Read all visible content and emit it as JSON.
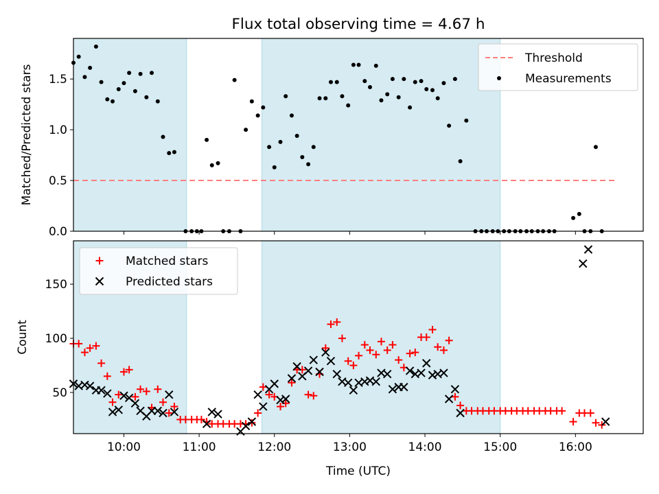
{
  "figure": {
    "title": "Flux total observing time = 4.67 h"
  },
  "colors": {
    "band": "#add8e6",
    "threshold": "#ff7f7f",
    "measurement": "#000000",
    "matched": "#ff0000",
    "predicted": "#000000"
  },
  "chart_data": [
    {
      "id": "ratio",
      "type": "scatter",
      "ylabel": "Matched/Predicted stars",
      "xlabel": "",
      "xlim": [
        9.33,
        16.9
      ],
      "ylim": [
        0,
        1.9
      ],
      "yticks": [
        0.0,
        0.5,
        1.0,
        1.5
      ],
      "ytick_labels": [
        "0.0",
        "0.5",
        "1.0",
        "1.5"
      ],
      "shaded_intervals": [
        [
          9.33,
          10.833
        ],
        [
          11.833,
          15.0
        ]
      ],
      "threshold": {
        "value": 0.5,
        "x_range": [
          9.33,
          16.55
        ]
      },
      "legend": {
        "position": "upper right",
        "entries": [
          "Threshold",
          "Measurements"
        ]
      },
      "series": [
        {
          "name": "Measurements",
          "marker": "dot",
          "points": [
            [
              9.33,
              1.66
            ],
            [
              9.4,
              1.72
            ],
            [
              9.48,
              1.52
            ],
            [
              9.55,
              1.61
            ],
            [
              9.63,
              1.82
            ],
            [
              9.7,
              1.47
            ],
            [
              9.78,
              1.3
            ],
            [
              9.85,
              1.28
            ],
            [
              9.93,
              1.4
            ],
            [
              10.0,
              1.46
            ],
            [
              10.07,
              1.56
            ],
            [
              10.15,
              1.38
            ],
            [
              10.22,
              1.55
            ],
            [
              10.3,
              1.32
            ],
            [
              10.37,
              1.56
            ],
            [
              10.45,
              1.28
            ],
            [
              10.52,
              0.93
            ],
            [
              10.6,
              0.77
            ],
            [
              10.67,
              0.78
            ],
            [
              10.82,
              0.0
            ],
            [
              10.9,
              0.0
            ],
            [
              10.97,
              0.0
            ],
            [
              11.03,
              0.0
            ],
            [
              11.1,
              0.9
            ],
            [
              11.17,
              0.65
            ],
            [
              11.25,
              0.67
            ],
            [
              11.32,
              0.0
            ],
            [
              11.4,
              0.0
            ],
            [
              11.47,
              1.49
            ],
            [
              11.55,
              0.0
            ],
            [
              11.62,
              1.0
            ],
            [
              11.7,
              1.28
            ],
            [
              11.78,
              1.14
            ],
            [
              11.85,
              1.22
            ],
            [
              11.93,
              0.83
            ],
            [
              12.0,
              0.63
            ],
            [
              12.08,
              0.88
            ],
            [
              12.15,
              1.33
            ],
            [
              12.23,
              1.14
            ],
            [
              12.3,
              0.94
            ],
            [
              12.37,
              0.73
            ],
            [
              12.45,
              0.66
            ],
            [
              12.52,
              0.83
            ],
            [
              12.6,
              1.31
            ],
            [
              12.68,
              1.31
            ],
            [
              12.75,
              1.47
            ],
            [
              12.83,
              1.47
            ],
            [
              12.9,
              1.33
            ],
            [
              12.98,
              1.24
            ],
            [
              13.05,
              1.64
            ],
            [
              13.12,
              1.64
            ],
            [
              13.2,
              1.48
            ],
            [
              13.27,
              1.42
            ],
            [
              13.35,
              1.63
            ],
            [
              13.42,
              1.29
            ],
            [
              13.5,
              1.35
            ],
            [
              13.57,
              1.5
            ],
            [
              13.65,
              1.32
            ],
            [
              13.72,
              1.5
            ],
            [
              13.8,
              1.22
            ],
            [
              13.87,
              1.47
            ],
            [
              13.95,
              1.48
            ],
            [
              14.02,
              1.4
            ],
            [
              14.1,
              1.39
            ],
            [
              14.17,
              1.31
            ],
            [
              14.25,
              1.46
            ],
            [
              14.32,
              1.04
            ],
            [
              14.4,
              1.5
            ],
            [
              14.47,
              0.69
            ],
            [
              14.55,
              1.09
            ],
            [
              14.67,
              0.0
            ],
            [
              14.75,
              0.0
            ],
            [
              14.82,
              0.0
            ],
            [
              14.9,
              0.0
            ],
            [
              14.97,
              0.0
            ],
            [
              15.05,
              0.0
            ],
            [
              15.12,
              0.0
            ],
            [
              15.2,
              0.0
            ],
            [
              15.27,
              0.0
            ],
            [
              15.35,
              0.0
            ],
            [
              15.42,
              0.0
            ],
            [
              15.5,
              0.0
            ],
            [
              15.57,
              0.0
            ],
            [
              15.65,
              0.0
            ],
            [
              15.72,
              0.0
            ],
            [
              15.97,
              0.13
            ],
            [
              16.05,
              0.17
            ],
            [
              16.12,
              0.0
            ],
            [
              16.2,
              0.0
            ],
            [
              16.27,
              0.83
            ],
            [
              16.35,
              0.0
            ]
          ]
        }
      ]
    },
    {
      "id": "counts",
      "type": "scatter",
      "ylabel": "Count",
      "xlabel": "Time (UTC)",
      "xlim": [
        9.33,
        16.9
      ],
      "ylim": [
        12,
        190
      ],
      "yticks": [
        50,
        100,
        150
      ],
      "ytick_labels": [
        "50",
        "100",
        "150"
      ],
      "xticks": [
        10,
        11,
        12,
        13,
        14,
        15,
        16
      ],
      "xtick_labels": [
        "10:00",
        "11:00",
        "12:00",
        "13:00",
        "14:00",
        "15:00",
        "16:00"
      ],
      "shaded_intervals": [
        [
          9.33,
          10.833
        ],
        [
          11.833,
          15.0
        ]
      ],
      "legend": {
        "position": "upper left",
        "entries": [
          "Matched stars",
          "Predicted stars"
        ]
      },
      "series": [
        {
          "name": "Matched stars",
          "marker": "plus",
          "points": [
            [
              9.33,
              95
            ],
            [
              9.4,
              95
            ],
            [
              9.48,
              87
            ],
            [
              9.55,
              91
            ],
            [
              9.63,
              93
            ],
            [
              9.7,
              77
            ],
            [
              9.78,
              65
            ],
            [
              9.85,
              41
            ],
            [
              9.93,
              48
            ],
            [
              10.0,
              69
            ],
            [
              10.07,
              71
            ],
            [
              10.15,
              46
            ],
            [
              10.22,
              53
            ],
            [
              10.3,
              51
            ],
            [
              10.37,
              36
            ],
            [
              10.45,
              53
            ],
            [
              10.52,
              41
            ],
            [
              10.6,
              31
            ],
            [
              10.67,
              37
            ],
            [
              10.75,
              25
            ],
            [
              10.82,
              25
            ],
            [
              10.9,
              25
            ],
            [
              10.97,
              25
            ],
            [
              11.03,
              25
            ],
            [
              11.1,
              23
            ],
            [
              11.17,
              21
            ],
            [
              11.25,
              21
            ],
            [
              11.32,
              21
            ],
            [
              11.4,
              21
            ],
            [
              11.47,
              21
            ],
            [
              11.55,
              21
            ],
            [
              11.62,
              21
            ],
            [
              11.7,
              22
            ],
            [
              11.78,
              31
            ],
            [
              11.85,
              55
            ],
            [
              11.93,
              48
            ],
            [
              12.0,
              46
            ],
            [
              12.08,
              37
            ],
            [
              12.15,
              40
            ],
            [
              12.23,
              59
            ],
            [
              12.3,
              71
            ],
            [
              12.37,
              71
            ],
            [
              12.45,
              48
            ],
            [
              12.52,
              47
            ],
            [
              12.6,
              67
            ],
            [
              12.68,
              91
            ],
            [
              12.75,
              113
            ],
            [
              12.83,
              115
            ],
            [
              12.9,
              100
            ],
            [
              12.98,
              79
            ],
            [
              13.05,
              75
            ],
            [
              13.12,
              84
            ],
            [
              13.2,
              94
            ],
            [
              13.27,
              89
            ],
            [
              13.35,
              85
            ],
            [
              13.42,
              97
            ],
            [
              13.5,
              89
            ],
            [
              13.57,
              94
            ],
            [
              13.65,
              80
            ],
            [
              13.72,
              73
            ],
            [
              13.8,
              86
            ],
            [
              13.87,
              87
            ],
            [
              13.95,
              101
            ],
            [
              14.02,
              101
            ],
            [
              14.1,
              108
            ],
            [
              14.17,
              92
            ],
            [
              14.25,
              89
            ],
            [
              14.32,
              98
            ],
            [
              14.4,
              46
            ],
            [
              14.47,
              38
            ],
            [
              14.55,
              33
            ],
            [
              14.62,
              33
            ],
            [
              14.7,
              33
            ],
            [
              14.77,
              33
            ],
            [
              14.85,
              33
            ],
            [
              14.92,
              33
            ],
            [
              15.0,
              33
            ],
            [
              15.07,
              33
            ],
            [
              15.15,
              33
            ],
            [
              15.22,
              33
            ],
            [
              15.3,
              33
            ],
            [
              15.37,
              33
            ],
            [
              15.45,
              33
            ],
            [
              15.52,
              33
            ],
            [
              15.6,
              33
            ],
            [
              15.67,
              33
            ],
            [
              15.75,
              33
            ],
            [
              15.82,
              33
            ],
            [
              15.97,
              23
            ],
            [
              16.05,
              31
            ],
            [
              16.12,
              31
            ],
            [
              16.2,
              31
            ],
            [
              16.27,
              22
            ],
            [
              16.35,
              20
            ]
          ]
        },
        {
          "name": "Predicted stars",
          "marker": "x",
          "points": [
            [
              9.33,
              58
            ],
            [
              9.4,
              56
            ],
            [
              9.48,
              57
            ],
            [
              9.55,
              56
            ],
            [
              9.63,
              52
            ],
            [
              9.7,
              52
            ],
            [
              9.78,
              49
            ],
            [
              9.85,
              32
            ],
            [
              9.93,
              34
            ],
            [
              10.0,
              47
            ],
            [
              10.07,
              45
            ],
            [
              10.15,
              40
            ],
            [
              10.22,
              33
            ],
            [
              10.3,
              28
            ],
            [
              10.37,
              33
            ],
            [
              10.45,
              33
            ],
            [
              10.52,
              31
            ],
            [
              10.6,
              48
            ],
            [
              10.67,
              32
            ],
            [
              11.1,
              21
            ],
            [
              11.17,
              32
            ],
            [
              11.25,
              30
            ],
            [
              11.55,
              14
            ],
            [
              11.62,
              19
            ],
            [
              11.7,
              23
            ],
            [
              11.78,
              48
            ],
            [
              11.85,
              37
            ],
            [
              11.93,
              53
            ],
            [
              12.0,
              58
            ],
            [
              12.08,
              43
            ],
            [
              12.15,
              44
            ],
            [
              12.23,
              63
            ],
            [
              12.3,
              74
            ],
            [
              12.37,
              65
            ],
            [
              12.45,
              70
            ],
            [
              12.52,
              80
            ],
            [
              12.6,
              69
            ],
            [
              12.68,
              87
            ],
            [
              12.75,
              79
            ],
            [
              12.83,
              67
            ],
            [
              12.9,
              60
            ],
            [
              12.98,
              59
            ],
            [
              13.05,
              52
            ],
            [
              13.12,
              59
            ],
            [
              13.2,
              60
            ],
            [
              13.27,
              61
            ],
            [
              13.35,
              60
            ],
            [
              13.42,
              68
            ],
            [
              13.5,
              67
            ],
            [
              13.57,
              53
            ],
            [
              13.65,
              55
            ],
            [
              13.72,
              55
            ],
            [
              13.8,
              70
            ],
            [
              13.87,
              67
            ],
            [
              13.95,
              68
            ],
            [
              14.02,
              77
            ],
            [
              14.1,
              66
            ],
            [
              14.17,
              67
            ],
            [
              14.25,
              68
            ],
            [
              14.32,
              44
            ],
            [
              14.4,
              53
            ],
            [
              14.47,
              31
            ],
            [
              16.1,
              169
            ],
            [
              16.17,
              182
            ],
            [
              16.4,
              23
            ]
          ]
        }
      ]
    }
  ]
}
